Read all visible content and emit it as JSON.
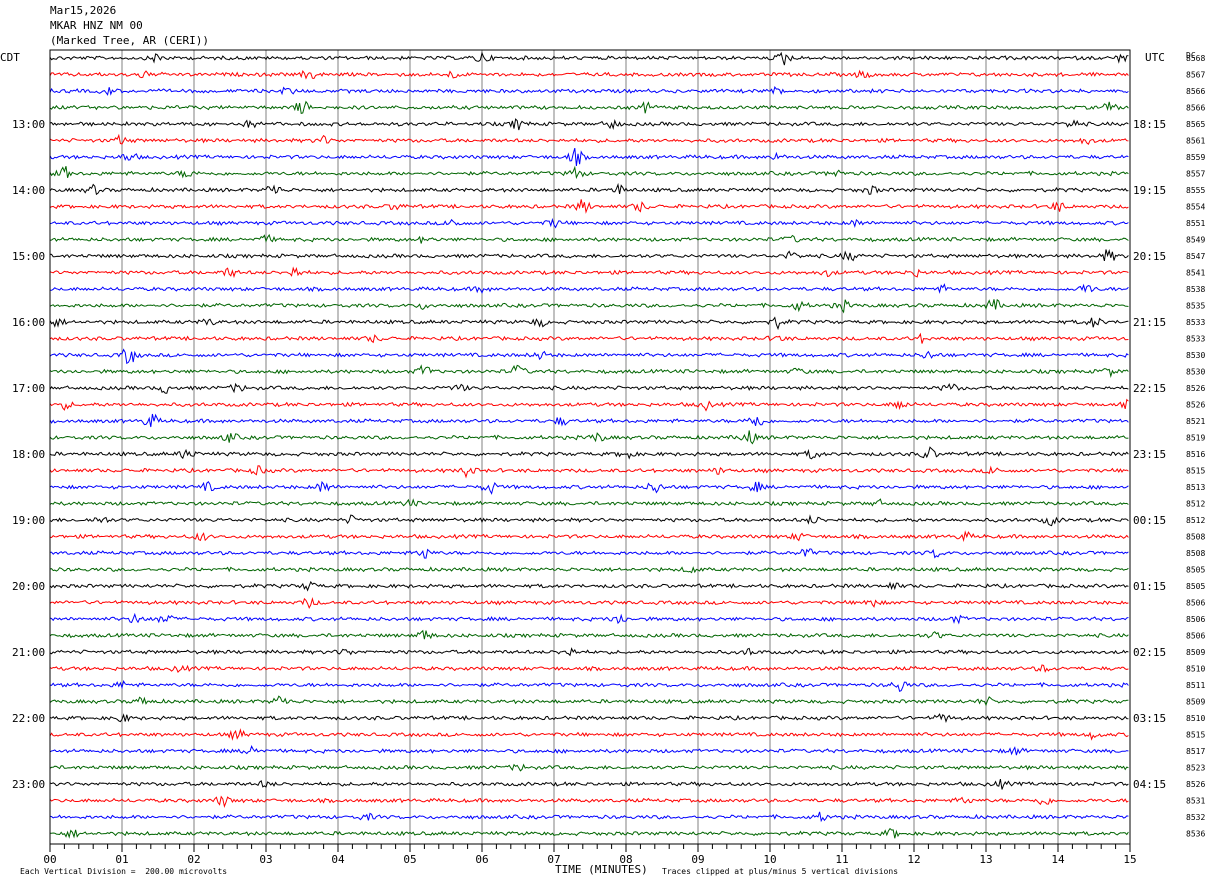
{
  "header": {
    "date": "Mar15,2026",
    "station": "MKAR HNZ NM 00",
    "location": "(Marked Tree, AR (CERI))"
  },
  "labels": {
    "left_tz": "CDT",
    "right_tz": "UTC",
    "dc": "DC"
  },
  "footer": {
    "scale": "Each Vertical Division =  200.00 microvolts",
    "xlabel": "TIME (MINUTES)",
    "clip": "Traces clipped at plus/minus 5 vertical divisions"
  },
  "colors": {
    "trace_cycle": [
      "#000000",
      "#ff0000",
      "#0000ff",
      "#006400"
    ],
    "grid": "#808080"
  },
  "chart_data": {
    "type": "line",
    "x_ticks": [
      "00",
      "01",
      "02",
      "03",
      "04",
      "05",
      "06",
      "07",
      "08",
      "09",
      "10",
      "11",
      "12",
      "13",
      "14",
      "15"
    ],
    "xlim": [
      0,
      15
    ],
    "left_hour_labels": [
      "13:00",
      "14:00",
      "15:00",
      "16:00",
      "17:00",
      "18:00",
      "19:00",
      "20:00",
      "21:00",
      "22:00",
      "23:00"
    ],
    "right_hour_labels": [
      "18:15",
      "19:15",
      "20:15",
      "21:15",
      "22:15",
      "23:15",
      "00:15",
      "01:15",
      "02:15",
      "03:15",
      "04:15"
    ],
    "dc_offsets": [
      "8568",
      "8567",
      "8566",
      "8566",
      "8565",
      "8561",
      "8559",
      "8557",
      "8555",
      "8554",
      "8551",
      "8549",
      "8547",
      "8541",
      "8538",
      "8535",
      "8533",
      "8533",
      "8530",
      "8530",
      "8526",
      "8526",
      "8521",
      "8519",
      "8516",
      "8515",
      "8513",
      "8512",
      "8512",
      "8508",
      "8508",
      "8505",
      "8505",
      "8506",
      "8506",
      "8506",
      "8509",
      "8510",
      "8511",
      "8509",
      "8510",
      "8515",
      "8517",
      "8523",
      "8526",
      "8531",
      "8532",
      "8536"
    ],
    "events": [
      [
        [
          1.5,
          0.6
        ],
        [
          6.0,
          0.7
        ],
        [
          10.2,
          0.9
        ],
        [
          14.9,
          0.5
        ]
      ],
      [
        [
          1.3,
          0.4
        ],
        [
          3.6,
          0.7
        ],
        [
          5.6,
          0.4
        ],
        [
          11.3,
          0.5
        ]
      ],
      [
        [
          0.8,
          0.5
        ],
        [
          3.3,
          0.4
        ],
        [
          10.1,
          0.4
        ]
      ],
      [
        [
          3.5,
          0.9
        ],
        [
          8.3,
          0.7
        ],
        [
          14.7,
          0.6
        ]
      ],
      [
        [
          2.8,
          0.5
        ],
        [
          6.5,
          0.7
        ],
        [
          7.8,
          0.6
        ],
        [
          14.2,
          0.5
        ]
      ],
      [
        [
          1.0,
          0.6
        ],
        [
          3.8,
          0.5
        ],
        [
          14.4,
          0.4
        ]
      ],
      [
        [
          1.1,
          0.6
        ],
        [
          7.3,
          1.1
        ],
        [
          10.1,
          0.4
        ]
      ],
      [
        [
          0.2,
          0.8
        ],
        [
          1.9,
          0.5
        ],
        [
          7.3,
          0.8
        ],
        [
          10.9,
          0.5
        ]
      ],
      [
        [
          0.6,
          0.6
        ],
        [
          3.1,
          0.8
        ],
        [
          7.9,
          0.6
        ],
        [
          11.4,
          0.5
        ]
      ],
      [
        [
          4.8,
          0.4
        ],
        [
          7.4,
          0.9
        ],
        [
          8.2,
          0.6
        ],
        [
          14.0,
          0.6
        ]
      ],
      [
        [
          5.6,
          0.6
        ],
        [
          7.0,
          0.5
        ],
        [
          11.2,
          0.4
        ]
      ],
      [
        [
          3.0,
          0.5
        ],
        [
          5.2,
          0.4
        ],
        [
          10.3,
          0.4
        ]
      ],
      [
        [
          10.3,
          0.5
        ],
        [
          11.1,
          0.6
        ],
        [
          14.7,
          0.8
        ]
      ],
      [
        [
          2.5,
          0.6
        ],
        [
          3.4,
          0.7
        ],
        [
          10.8,
          0.4
        ],
        [
          12.0,
          0.5
        ]
      ],
      [
        [
          6.0,
          0.4
        ],
        [
          12.4,
          0.4
        ],
        [
          14.4,
          0.6
        ]
      ],
      [
        [
          5.2,
          0.4
        ],
        [
          10.4,
          0.6
        ],
        [
          11.0,
          0.7
        ],
        [
          13.1,
          0.8
        ]
      ],
      [
        [
          0.1,
          0.5
        ],
        [
          2.2,
          0.4
        ],
        [
          6.8,
          0.5
        ],
        [
          10.1,
          0.7
        ],
        [
          14.5,
          0.7
        ]
      ],
      [
        [
          4.5,
          0.4
        ],
        [
          10.1,
          0.4
        ],
        [
          12.1,
          0.5
        ]
      ],
      [
        [
          1.1,
          1.2
        ],
        [
          6.8,
          0.5
        ],
        [
          12.2,
          0.5
        ]
      ],
      [
        [
          5.2,
          0.8
        ],
        [
          6.5,
          0.8
        ],
        [
          10.4,
          0.4
        ],
        [
          14.7,
          0.5
        ]
      ],
      [
        [
          1.6,
          0.6
        ],
        [
          2.6,
          0.5
        ],
        [
          5.7,
          0.4
        ],
        [
          12.5,
          0.6
        ]
      ],
      [
        [
          0.2,
          0.5
        ],
        [
          9.1,
          0.6
        ],
        [
          11.8,
          0.6
        ],
        [
          15.0,
          0.6
        ]
      ],
      [
        [
          1.4,
          1.0
        ],
        [
          7.1,
          0.5
        ],
        [
          9.8,
          1.2
        ]
      ],
      [
        [
          2.5,
          0.6
        ],
        [
          7.6,
          0.6
        ],
        [
          9.7,
          1.0
        ]
      ],
      [
        [
          1.9,
          0.7
        ],
        [
          8.0,
          0.6
        ],
        [
          10.6,
          0.6
        ],
        [
          12.2,
          0.9
        ]
      ],
      [
        [
          2.9,
          0.5
        ],
        [
          5.8,
          0.7
        ],
        [
          9.3,
          0.4
        ],
        [
          13.1,
          0.5
        ]
      ],
      [
        [
          2.2,
          0.5
        ],
        [
          3.8,
          0.8
        ],
        [
          6.1,
          0.9
        ],
        [
          8.4,
          0.8
        ],
        [
          9.8,
          0.6
        ]
      ],
      [
        [
          5.0,
          0.4
        ],
        [
          11.5,
          0.4
        ]
      ],
      [
        [
          0.7,
          0.5
        ],
        [
          4.2,
          0.5
        ],
        [
          10.6,
          0.5
        ],
        [
          13.9,
          0.6
        ]
      ],
      [
        [
          2.1,
          0.5
        ],
        [
          10.4,
          0.5
        ],
        [
          12.7,
          0.5
        ]
      ],
      [
        [
          5.2,
          0.8
        ],
        [
          10.5,
          0.6
        ],
        [
          12.3,
          0.5
        ]
      ],
      [
        [
          8.9,
          0.4
        ]
      ],
      [
        [
          3.6,
          0.5
        ],
        [
          11.7,
          0.4
        ]
      ],
      [
        [
          3.6,
          0.6
        ],
        [
          11.4,
          0.6
        ]
      ],
      [
        [
          1.2,
          0.6
        ],
        [
          1.6,
          0.7
        ],
        [
          7.9,
          0.7
        ],
        [
          12.6,
          0.4
        ]
      ],
      [
        [
          5.2,
          0.7
        ],
        [
          12.3,
          0.4
        ]
      ],
      [
        [
          4.1,
          0.4
        ],
        [
          7.2,
          0.6
        ],
        [
          9.7,
          0.4
        ]
      ],
      [
        [
          1.8,
          0.4
        ],
        [
          13.8,
          0.4
        ]
      ],
      [
        [
          1.0,
          0.4
        ],
        [
          11.8,
          0.9
        ]
      ],
      [
        [
          1.3,
          0.6
        ],
        [
          3.2,
          0.8
        ],
        [
          13.0,
          0.5
        ]
      ],
      [
        [
          1.0,
          0.5
        ],
        [
          12.4,
          0.5
        ]
      ],
      [
        [
          2.6,
          0.6
        ],
        [
          14.5,
          0.5
        ]
      ],
      [
        [
          2.8,
          0.7
        ],
        [
          13.4,
          0.5
        ]
      ],
      [
        [
          6.5,
          0.4
        ]
      ],
      [
        [
          3.0,
          0.4
        ],
        [
          13.2,
          0.5
        ]
      ],
      [
        [
          2.4,
          0.7
        ],
        [
          12.7,
          0.5
        ],
        [
          13.8,
          0.6
        ]
      ],
      [
        [
          4.4,
          0.4
        ],
        [
          10.7,
          0.5
        ]
      ],
      [
        [
          0.3,
          0.5
        ],
        [
          11.7,
          0.6
        ]
      ]
    ]
  }
}
